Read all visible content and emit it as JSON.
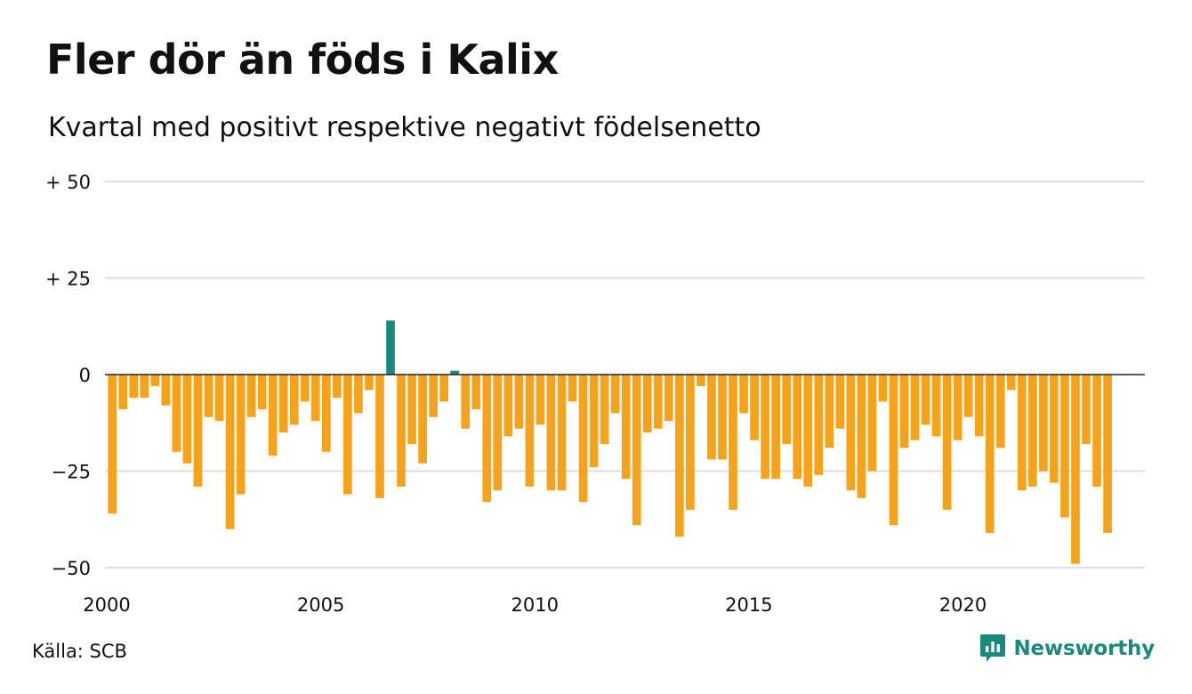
{
  "title": "Fler dör än föds i Kalix",
  "subtitle": "Kvartal med positivt respektive negativt födelsenetto",
  "source": "Källa: SCB",
  "brand": {
    "name": "Newsworthy",
    "icon": "newsworthy-logo-icon",
    "color": "#1a8a7c"
  },
  "colors": {
    "positive": "#1a8a7c",
    "negative": "#f7a21b",
    "grid": "#dedede",
    "zero_line": "#222222",
    "text": "#111111"
  },
  "chart_data": {
    "type": "bar",
    "title": "Fler dör än föds i Kalix",
    "subtitle": "Kvartal med positivt respektive negativt födelsenetto",
    "xlabel": "",
    "ylabel": "",
    "x_start": 2000,
    "x_step": 0.25,
    "ylim": [
      -50,
      50
    ],
    "xlim": [
      2000,
      2024.25
    ],
    "y_ticks": [
      {
        "value": 50,
        "label": "+ 50"
      },
      {
        "value": 25,
        "label": "+ 25"
      },
      {
        "value": 0,
        "label": "0"
      },
      {
        "value": -25,
        "label": "−25"
      },
      {
        "value": -50,
        "label": "−50"
      }
    ],
    "x_ticks": [
      {
        "value": 2000,
        "label": "2000"
      },
      {
        "value": 2005,
        "label": "2005"
      },
      {
        "value": 2010,
        "label": "2010"
      },
      {
        "value": 2015,
        "label": "2015"
      },
      {
        "value": 2020,
        "label": "2020"
      }
    ],
    "grid": true,
    "values": [
      -36,
      -9,
      -6,
      -6,
      -3,
      -8,
      -20,
      -23,
      -29,
      -11,
      -12,
      -40,
      -31,
      -11,
      -9,
      -21,
      -15,
      -13,
      -7,
      -12,
      -20,
      -6,
      -31,
      -10,
      -4,
      -32,
      14,
      -29,
      -18,
      -23,
      -11,
      -7,
      1,
      -14,
      -9,
      -33,
      -30,
      -16,
      -14,
      -29,
      -13,
      -30,
      -30,
      -7,
      -33,
      -24,
      -18,
      -10,
      -27,
      -39,
      -15,
      -14,
      -12,
      -42,
      -35,
      -3,
      -22,
      -22,
      -35,
      -10,
      -17,
      -27,
      -27,
      -18,
      -27,
      -29,
      -26,
      -19,
      -14,
      -30,
      -32,
      -25,
      -7,
      -39,
      -19,
      -17,
      -13,
      -16,
      -35,
      -17,
      -11,
      -16,
      -41,
      -19,
      -4,
      -30,
      -29,
      -25,
      -28,
      -37,
      -49,
      -18,
      -29,
      -41
    ]
  }
}
